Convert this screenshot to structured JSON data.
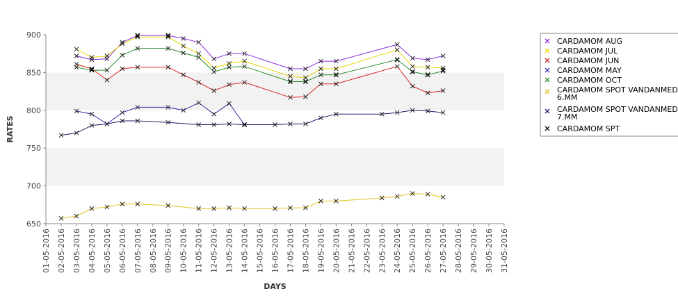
{
  "chart_data": {
    "type": "line",
    "xlabel": "DAYS",
    "ylabel": "RATES",
    "ylim": [
      650,
      900
    ],
    "y_ticks": [
      650,
      700,
      750,
      800,
      850,
      900
    ],
    "x_ticks": [
      "01-05-2016",
      "02-05-2016",
      "03-05-2016",
      "04-05-2016",
      "05-05-2016",
      "06-05-2016",
      "07-05-2016",
      "08-05-2016",
      "09-05-2016",
      "10-05-2016",
      "11-05-2016",
      "12-05-2016",
      "13-05-2016",
      "14-05-2016",
      "15-05-2016",
      "16-05-2016",
      "17-05-2016",
      "18-05-2016",
      "19-05-2016",
      "20-05-2016",
      "21-05-2016",
      "22-05-2016",
      "23-05-2016",
      "24-05-2016",
      "25-05-2016",
      "26-05-2016",
      "27-05-2016",
      "28-05-2016",
      "29-05-2016",
      "30-05-2016",
      "31-05-2016"
    ],
    "grid": false,
    "alternating_bands": true,
    "legend_position": "right",
    "series": [
      {
        "name": "CARDAMOM AUG",
        "color": "#8a2be2",
        "points": [
          [
            "03-05-2016",
            872
          ],
          [
            "04-05-2016",
            867
          ],
          [
            "05-05-2016",
            868
          ],
          [
            "06-05-2016",
            890
          ],
          [
            "07-05-2016",
            899
          ],
          [
            "09-05-2016",
            899
          ],
          [
            "10-05-2016",
            895
          ],
          [
            "11-05-2016",
            890
          ],
          [
            "12-05-2016",
            868
          ],
          [
            "13-05-2016",
            875
          ],
          [
            "14-05-2016",
            875
          ],
          [
            "17-05-2016",
            855
          ],
          [
            "18-05-2016",
            855
          ],
          [
            "19-05-2016",
            865
          ],
          [
            "20-05-2016",
            865
          ],
          [
            "24-05-2016",
            887
          ],
          [
            "25-05-2016",
            869
          ],
          [
            "26-05-2016",
            867
          ],
          [
            "27-05-2016",
            872
          ]
        ]
      },
      {
        "name": "CARDAMOM JUL",
        "color": "#e6d800",
        "points": [
          [
            "03-05-2016",
            881
          ],
          [
            "04-05-2016",
            870
          ],
          [
            "05-05-2016",
            872
          ],
          [
            "06-05-2016",
            888
          ],
          [
            "07-05-2016",
            897
          ],
          [
            "09-05-2016",
            897
          ],
          [
            "10-05-2016",
            885
          ],
          [
            "11-05-2016",
            875
          ],
          [
            "12-05-2016",
            856
          ],
          [
            "13-05-2016",
            862
          ],
          [
            "14-05-2016",
            865
          ],
          [
            "17-05-2016",
            845
          ],
          [
            "18-05-2016",
            843
          ],
          [
            "19-05-2016",
            855
          ],
          [
            "20-05-2016",
            855
          ],
          [
            "24-05-2016",
            880
          ],
          [
            "25-05-2016",
            858
          ],
          [
            "26-05-2016",
            857
          ],
          [
            "27-05-2016",
            856
          ]
        ]
      },
      {
        "name": "CARDAMOM JUN",
        "color": "#dd2222",
        "points": [
          [
            "03-05-2016",
            861
          ],
          [
            "04-05-2016",
            855
          ],
          [
            "05-05-2016",
            840
          ],
          [
            "06-05-2016",
            855
          ],
          [
            "07-05-2016",
            857
          ],
          [
            "09-05-2016",
            857
          ],
          [
            "10-05-2016",
            847
          ],
          [
            "11-05-2016",
            837
          ],
          [
            "12-05-2016",
            826
          ],
          [
            "13-05-2016",
            834
          ],
          [
            "14-05-2016",
            837
          ],
          [
            "17-05-2016",
            817
          ],
          [
            "18-05-2016",
            818
          ],
          [
            "19-05-2016",
            835
          ],
          [
            "20-05-2016",
            835
          ],
          [
            "24-05-2016",
            858
          ],
          [
            "25-05-2016",
            832
          ],
          [
            "26-05-2016",
            823
          ],
          [
            "27-05-2016",
            826
          ]
        ]
      },
      {
        "name": "CARDAMOM MAY",
        "color": "#3333aa",
        "points": [
          [
            "03-05-2016",
            799
          ],
          [
            "04-05-2016",
            795
          ],
          [
            "05-05-2016",
            782
          ],
          [
            "06-05-2016",
            797
          ],
          [
            "07-05-2016",
            804
          ],
          [
            "09-05-2016",
            804
          ],
          [
            "10-05-2016",
            800
          ],
          [
            "11-05-2016",
            810
          ],
          [
            "12-05-2016",
            795
          ],
          [
            "13-05-2016",
            809
          ],
          [
            "14-05-2016",
            781
          ]
        ]
      },
      {
        "name": "CARDAMOM OCT",
        "color": "#2a8a2a",
        "points": [
          [
            "03-05-2016",
            857
          ],
          [
            "04-05-2016",
            853
          ],
          [
            "05-05-2016",
            853
          ],
          [
            "06-05-2016",
            873
          ],
          [
            "07-05-2016",
            882
          ],
          [
            "09-05-2016",
            882
          ],
          [
            "10-05-2016",
            876
          ],
          [
            "11-05-2016",
            870
          ],
          [
            "12-05-2016",
            851
          ],
          [
            "13-05-2016",
            857
          ],
          [
            "14-05-2016",
            858
          ],
          [
            "17-05-2016",
            838
          ],
          [
            "18-05-2016",
            838
          ],
          [
            "19-05-2016",
            847
          ],
          [
            "20-05-2016",
            847
          ],
          [
            "24-05-2016",
            867
          ],
          [
            "25-05-2016",
            851
          ],
          [
            "26-05-2016",
            847
          ],
          [
            "27-05-2016",
            852
          ]
        ]
      },
      {
        "name": "CARDAMOM SPOT VANDANMEDU 6.MM",
        "color": "#e6c020",
        "points": [
          [
            "02-05-2016",
            657
          ],
          [
            "03-05-2016",
            660
          ],
          [
            "04-05-2016",
            670
          ],
          [
            "05-05-2016",
            672
          ],
          [
            "06-05-2016",
            676
          ],
          [
            "07-05-2016",
            676
          ],
          [
            "09-05-2016",
            674
          ],
          [
            "11-05-2016",
            670
          ],
          [
            "12-05-2016",
            670
          ],
          [
            "13-05-2016",
            671
          ],
          [
            "14-05-2016",
            670
          ],
          [
            "16-05-2016",
            670
          ],
          [
            "17-05-2016",
            671
          ],
          [
            "18-05-2016",
            671
          ],
          [
            "19-05-2016",
            680
          ],
          [
            "20-05-2016",
            680
          ],
          [
            "23-05-2016",
            684
          ],
          [
            "24-05-2016",
            686
          ],
          [
            "25-05-2016",
            690
          ],
          [
            "26-05-2016",
            689
          ],
          [
            "27-05-2016",
            685
          ]
        ]
      },
      {
        "name": "CARDAMOM SPOT VANDANMEDU 7.MM",
        "color": "#1a1a6e",
        "points": [
          [
            "02-05-2016",
            767
          ],
          [
            "03-05-2016",
            770
          ],
          [
            "04-05-2016",
            780
          ],
          [
            "05-05-2016",
            782
          ],
          [
            "06-05-2016",
            786
          ],
          [
            "07-05-2016",
            786
          ],
          [
            "09-05-2016",
            784
          ],
          [
            "11-05-2016",
            781
          ],
          [
            "12-05-2016",
            781
          ],
          [
            "13-05-2016",
            782
          ],
          [
            "14-05-2016",
            781
          ],
          [
            "16-05-2016",
            781
          ],
          [
            "17-05-2016",
            782
          ],
          [
            "18-05-2016",
            782
          ],
          [
            "19-05-2016",
            790
          ],
          [
            "20-05-2016",
            795
          ],
          [
            "23-05-2016",
            795
          ],
          [
            "24-05-2016",
            797
          ],
          [
            "25-05-2016",
            800
          ],
          [
            "26-05-2016",
            799
          ],
          [
            "27-05-2016",
            797
          ]
        ]
      },
      {
        "name": "CARDAMOM SPT",
        "color": "#111111",
        "hidden_line": true,
        "points": [
          [
            "04-05-2016",
            854
          ],
          [
            "07-05-2016",
            899
          ],
          [
            "09-05-2016",
            899
          ],
          [
            "14-05-2016",
            781
          ],
          [
            "17-05-2016",
            838
          ],
          [
            "18-05-2016",
            838
          ],
          [
            "20-05-2016",
            847
          ],
          [
            "24-05-2016",
            867
          ],
          [
            "25-05-2016",
            851
          ],
          [
            "26-05-2016",
            847
          ],
          [
            "27-05-2016",
            853
          ]
        ]
      }
    ],
    "legend_labels": [
      [
        "CARDAMOM AUG"
      ],
      [
        "CARDAMOM JUL"
      ],
      [
        "CARDAMOM JUN"
      ],
      [
        "CARDAMOM MAY"
      ],
      [
        "CARDAMOM OCT"
      ],
      [
        "CARDAMOM SPOT VANDANMEDU",
        "6.MM"
      ],
      [
        "CARDAMOM SPOT VANDANMEDU",
        "7.MM"
      ],
      [
        "CARDAMOM SPT"
      ]
    ]
  }
}
